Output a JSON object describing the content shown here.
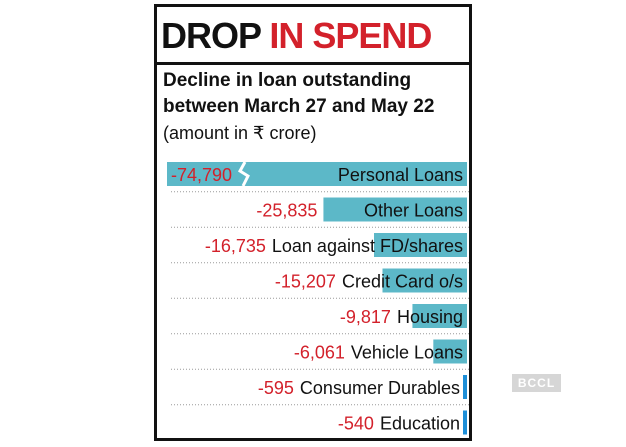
{
  "headline": {
    "part1": "DROP",
    "part2": "IN SPEND"
  },
  "subtitle": "Decline in loan outstanding between March 27 and May 22",
  "unit_note": "(amount in ₹ crore)",
  "brand_badge": "BCCL",
  "colors": {
    "bar": "#5cb8c8",
    "bar_blue": "#1e8fd8",
    "value_red": "#d3212b",
    "headline_red": "#d3212b",
    "text": "#111111"
  },
  "chart_data": {
    "type": "bar",
    "orientation": "horizontal",
    "title": "DROP IN SPEND",
    "subtitle": "Decline in loan outstanding between March 27 and May 22",
    "unit": "(amount in ₹ crore)",
    "categories": [
      "Personal Loans",
      "Other Loans",
      "Loan against FD/shares",
      "Credit Card o/s",
      "Housing",
      "Vehicle Loans",
      "Consumer Durables",
      "Education"
    ],
    "values": [
      -74790,
      -25835,
      -16735,
      -15207,
      -9817,
      -6061,
      -595,
      -540
    ],
    "value_labels": [
      "-74,790",
      "-25,835",
      "-16,735",
      "-15,207",
      "-9,817",
      "-6,061",
      "-595",
      "-540"
    ],
    "axis_break": "Personal Loans",
    "grid": false,
    "legend": "none"
  }
}
